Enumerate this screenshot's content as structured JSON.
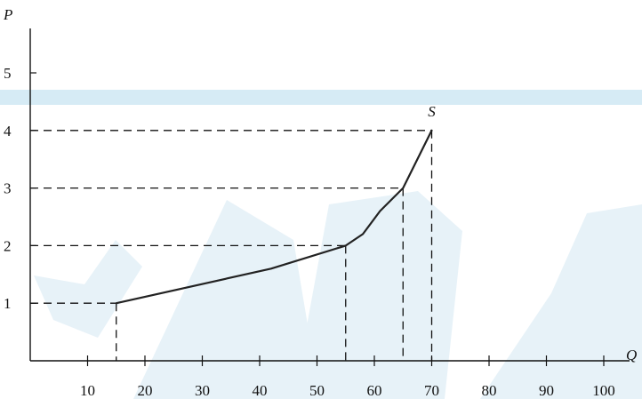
{
  "chart_data": {
    "type": "line",
    "xlabel": "Q",
    "ylabel": "P",
    "xlim": [
      0,
      104
    ],
    "ylim": [
      0,
      5.8
    ],
    "x_ticks": [
      10,
      20,
      30,
      40,
      50,
      60,
      70,
      80,
      90,
      100
    ],
    "x_tick_labels": [
      "10",
      "20",
      "30",
      "40",
      "50",
      "60",
      "70",
      "80",
      "90",
      "100"
    ],
    "y_ticks": [
      1,
      2,
      3,
      4,
      5
    ],
    "y_tick_labels": [
      "1",
      "2",
      "3",
      "4",
      "5"
    ],
    "grid": false,
    "series": [
      {
        "name": "S",
        "x": [
          15,
          42,
          55,
          58,
          61,
          65,
          70
        ],
        "y": [
          1,
          1.6,
          2,
          2.2,
          2.6,
          3,
          4
        ]
      }
    ],
    "guide_points": [
      {
        "x": 15,
        "y": 1
      },
      {
        "x": 55,
        "y": 2
      },
      {
        "x": 65,
        "y": 3
      },
      {
        "x": 70,
        "y": 4
      }
    ],
    "background_band_color": "#d6ebf5",
    "watermark_color": "#e7f2f8"
  }
}
